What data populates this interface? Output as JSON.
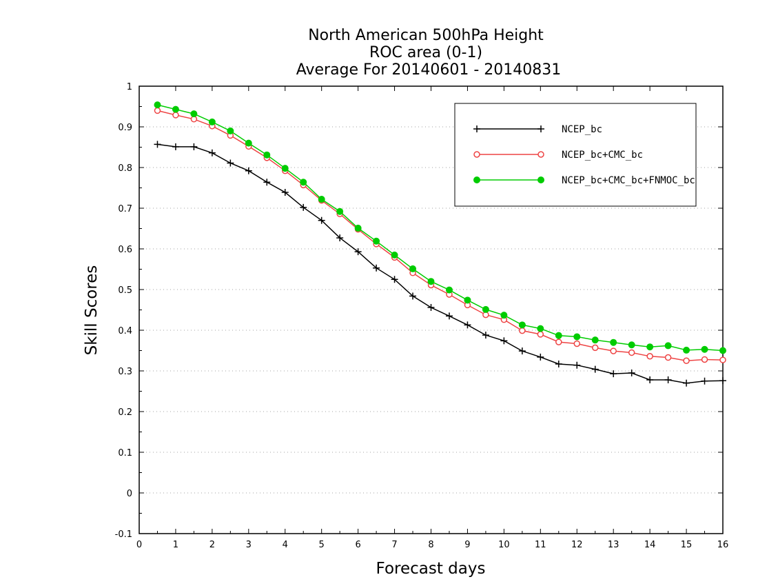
{
  "chart_data": {
    "type": "line",
    "title": [
      "North American 500hPa Height",
      "ROC area (0-1)",
      "Average For 20140601 - 20140831"
    ],
    "xlabel": "Forecast days",
    "ylabel": "Skill Scores",
    "xlim": [
      0,
      16
    ],
    "ylim": [
      -0.1,
      1
    ],
    "xticks": [
      "0",
      "1",
      "2",
      "3",
      "4",
      "5",
      "6",
      "7",
      "8",
      "9",
      "10",
      "11",
      "12",
      "13",
      "14",
      "15",
      "16"
    ],
    "yticks": [
      "-0.1",
      "0",
      "0.1",
      "0.2",
      "0.3",
      "0.4",
      "0.5",
      "0.6",
      "0.7",
      "0.8",
      "0.9",
      "1"
    ],
    "grid": "horizontal-dotted",
    "legend_position": "top-right",
    "x": [
      0.5,
      1,
      1.5,
      2,
      2.5,
      3,
      3.5,
      4,
      4.5,
      5,
      5.5,
      6,
      6.5,
      7,
      7.5,
      8,
      8.5,
      9,
      9.5,
      10,
      10.5,
      11,
      11.5,
      12,
      12.5,
      13,
      13.5,
      14,
      14.5,
      15,
      15.5,
      16
    ],
    "series": [
      {
        "name": "NCEP_bc",
        "color": "#000000",
        "marker": "plus",
        "values": [
          0.857,
          0.851,
          0.851,
          0.836,
          0.811,
          0.792,
          0.764,
          0.739,
          0.702,
          0.67,
          0.627,
          0.593,
          0.553,
          0.525,
          0.484,
          0.456,
          0.435,
          0.413,
          0.388,
          0.374,
          0.349,
          0.334,
          0.317,
          0.314,
          0.304,
          0.293,
          0.295,
          0.278,
          0.278,
          0.27,
          0.275,
          0.276
        ]
      },
      {
        "name": "NCEP_bc+CMC_bc",
        "color": "#ee4444",
        "marker": "open-circle",
        "values": [
          0.94,
          0.929,
          0.919,
          0.902,
          0.879,
          0.852,
          0.824,
          0.792,
          0.757,
          0.719,
          0.686,
          0.648,
          0.612,
          0.579,
          0.541,
          0.511,
          0.488,
          0.462,
          0.438,
          0.426,
          0.399,
          0.39,
          0.371,
          0.367,
          0.357,
          0.349,
          0.345,
          0.336,
          0.333,
          0.325,
          0.328,
          0.327
        ]
      },
      {
        "name": "NCEP_bc+CMC_bc+FNMOC_bc",
        "color": "#00cc00",
        "marker": "filled-circle",
        "values": [
          0.954,
          0.943,
          0.932,
          0.912,
          0.89,
          0.86,
          0.831,
          0.798,
          0.764,
          0.722,
          0.692,
          0.651,
          0.619,
          0.585,
          0.551,
          0.52,
          0.499,
          0.474,
          0.451,
          0.437,
          0.413,
          0.404,
          0.387,
          0.384,
          0.376,
          0.37,
          0.364,
          0.359,
          0.362,
          0.351,
          0.353,
          0.35
        ]
      }
    ]
  }
}
